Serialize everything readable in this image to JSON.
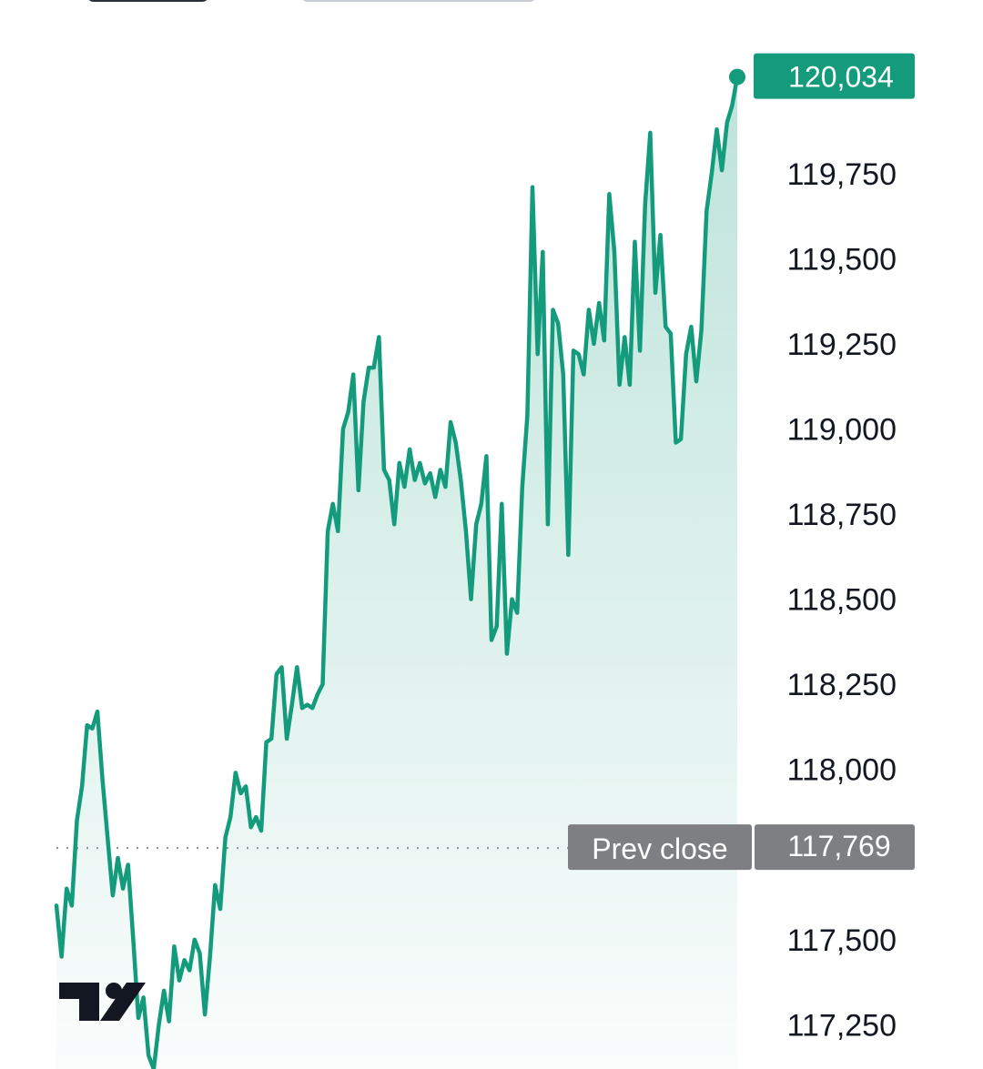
{
  "chart_data": {
    "type": "area",
    "title": "",
    "xlabel": "",
    "ylabel": "",
    "ylim": [
      117120,
      120260
    ],
    "y_ticks": [
      "117,250",
      "117,500",
      "118,000",
      "118,250",
      "118,500",
      "118,750",
      "119,000",
      "119,250",
      "119,500",
      "119,750"
    ],
    "y_tick_values": [
      117250,
      117500,
      118000,
      118250,
      118500,
      118750,
      119000,
      119250,
      119500,
      119750
    ],
    "last_price": 120034,
    "last_price_label": "120,034",
    "prev_close": 117769,
    "prev_close_label": "117,769",
    "prev_close_text": "Prev close",
    "grid": false,
    "line_color": "#139b7b",
    "fill_color": "#139b7b",
    "prev_close_badge_color": "#7e7f83",
    "series": [
      {
        "values": [
          117600,
          117450,
          117650,
          117600,
          117850,
          117950,
          118130,
          118120,
          118170,
          117970,
          117800,
          117630,
          117740,
          117650,
          117720,
          117500,
          117270,
          117330,
          117160,
          117120,
          117250,
          117350,
          117260,
          117480,
          117380,
          117440,
          117410,
          117500,
          117460,
          117280,
          117450,
          117660,
          117590,
          117800,
          117860,
          117990,
          117930,
          117950,
          117830,
          117860,
          117820,
          118080,
          118090,
          118280,
          118300,
          118090,
          118190,
          118300,
          118180,
          118190,
          118180,
          118220,
          118250,
          118700,
          118780,
          118700,
          119000,
          119050,
          119160,
          118820,
          119080,
          119180,
          119180,
          119270,
          118880,
          118850,
          118720,
          118900,
          118830,
          118940,
          118850,
          118900,
          118840,
          118870,
          118800,
          118880,
          118830,
          119020,
          118960,
          118850,
          118700,
          118500,
          118720,
          118780,
          118920,
          118380,
          118420,
          118780,
          118340,
          118500,
          118460,
          118830,
          119040,
          119710,
          119220,
          119520,
          118720,
          119350,
          119310,
          119160,
          118630,
          119230,
          119220,
          119160,
          119350,
          119250,
          119370,
          119260,
          119690,
          119520,
          119130,
          119270,
          119130,
          119550,
          119230,
          119660,
          119870,
          119400,
          119570,
          119300,
          119280,
          118960,
          118970,
          119220,
          119300,
          119140,
          119290,
          119640,
          119750,
          119880,
          119760,
          119900,
          119950,
          120034
        ]
      }
    ]
  },
  "logo": {
    "name": "tradingview-logo"
  }
}
